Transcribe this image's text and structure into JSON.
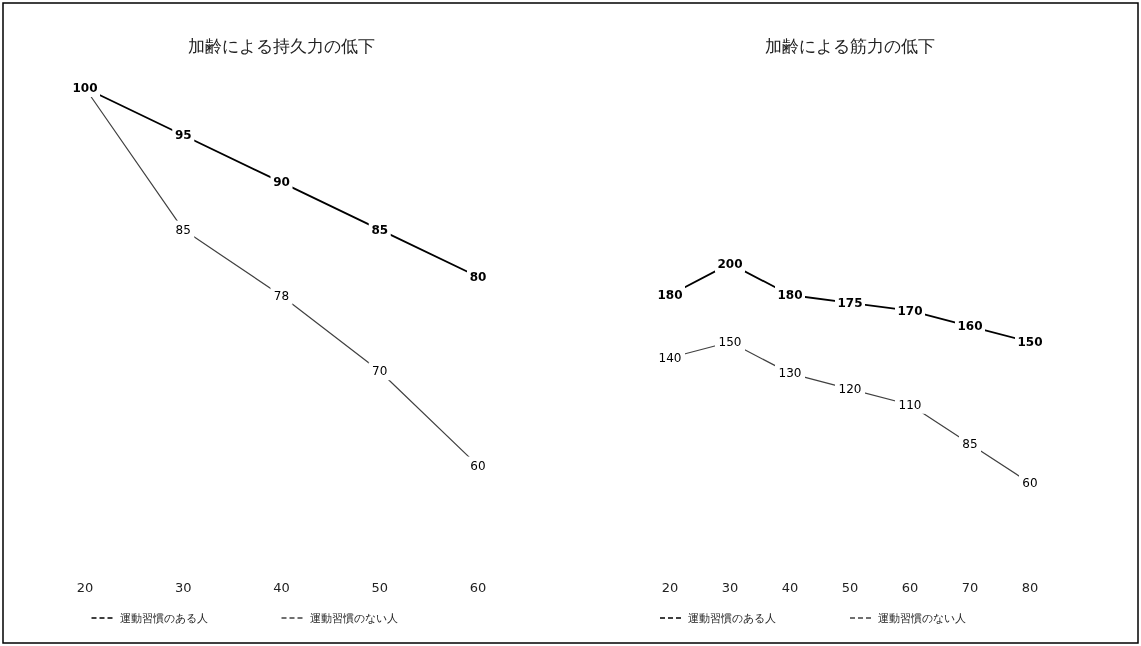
{
  "chart_data": [
    {
      "type": "line",
      "title": "加齢による持久力の低下",
      "categories": [
        "20",
        "30",
        "40",
        "50",
        "60"
      ],
      "series": [
        {
          "name": "運動習慣のある人",
          "color": "#000000",
          "values": [
            100,
            95,
            90,
            85,
            80
          ]
        },
        {
          "name": "運動習慣のない人",
          "color": "#404040",
          "values": [
            100,
            85,
            78,
            70,
            60
          ],
          "value_labels": [
            null,
            "85",
            "78",
            "70",
            "60"
          ]
        }
      ],
      "data_labels": true,
      "marker": "none",
      "legend": "bottom",
      "tick_labels": "x",
      "grid": false
    },
    {
      "type": "line",
      "title": "加齢による筋力の低下",
      "categories": [
        "20",
        "30",
        "40",
        "50",
        "60",
        "70",
        "80"
      ],
      "series": [
        {
          "name": "運動習慣のある人",
          "color": "#000000",
          "values": [
            180,
            200,
            180,
            175,
            170,
            160,
            150
          ]
        },
        {
          "name": "運動習慣のない人",
          "color": "#404040",
          "values": [
            140,
            150,
            130,
            120,
            110,
            85,
            60
          ]
        }
      ],
      "data_labels": true,
      "marker": "none",
      "legend": "bottom",
      "tick_labels": "x",
      "grid": false
    }
  ]
}
